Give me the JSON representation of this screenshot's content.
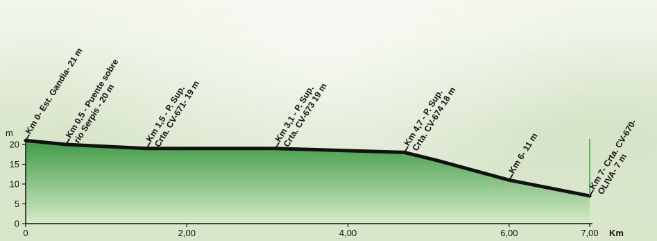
{
  "chart_data": {
    "type": "area",
    "title": "",
    "xlabel": "Km",
    "ylabel": "m",
    "xlim": [
      0,
      7
    ],
    "ylim": [
      0,
      20
    ],
    "xticks": [
      0,
      2,
      4,
      6,
      7
    ],
    "xtick_labels": [
      "0",
      "2,00",
      "4,00",
      "6,00",
      "7,00"
    ],
    "yticks": [
      0,
      5,
      10,
      15,
      20
    ],
    "ytick_labels": [
      "0",
      "5",
      "10",
      "15",
      "20"
    ],
    "grid": false,
    "series": [
      {
        "x": [
          0,
          0.5,
          1.5,
          3.1,
          4.7,
          5.1,
          6.0,
          7.0
        ],
        "y": [
          21,
          20,
          19,
          19,
          18,
          16,
          11,
          7
        ]
      }
    ],
    "annotations": [
      {
        "x": 0,
        "y": 21,
        "lines": [
          "Km 0- Est. Gandia- 21 m"
        ]
      },
      {
        "x": 0.5,
        "y": 20,
        "lines": [
          "Km 0,5 - Puente sobre",
          "rio Serpis - 20 m"
        ]
      },
      {
        "x": 1.5,
        "y": 19,
        "lines": [
          "Km 1,5 - P. Sup.",
          "Crta. CV-671- 19 m"
        ]
      },
      {
        "x": 3.1,
        "y": 19,
        "lines": [
          "Km 3,1 - P. Sup.",
          "Crta. CV-673 19 m"
        ]
      },
      {
        "x": 4.7,
        "y": 18,
        "lines": [
          "Km 4,7 - P. Sup.",
          "Crta. CV-674 18 m"
        ]
      },
      {
        "x": 6.0,
        "y": 11,
        "lines": [
          "Km 6- 11 m"
        ]
      },
      {
        "x": 7.0,
        "y": 7,
        "lines": [
          "Km 7- Crta. CV-670-",
          "OLIVA- 7 m"
        ]
      }
    ],
    "colors": {
      "fill_top": "#3f9a45",
      "fill_bottom": "#d6ecc8",
      "line": "#111111",
      "marker": "#58b25e"
    }
  }
}
